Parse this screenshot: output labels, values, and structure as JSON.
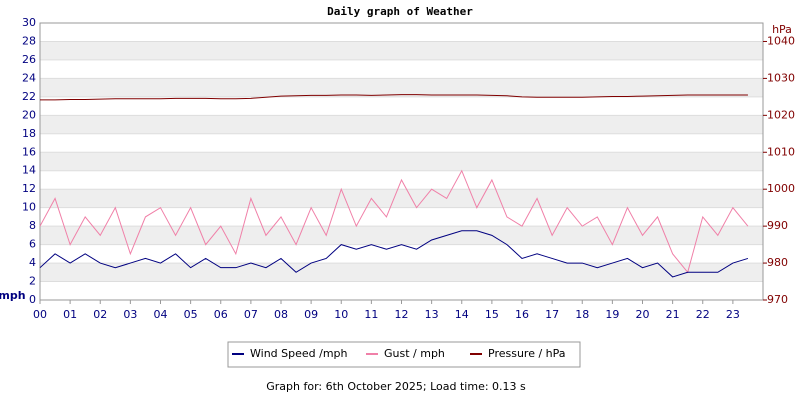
{
  "chart_data": {
    "type": "line",
    "title": "Daily graph of Weather",
    "ylabel": "mph",
    "y2label": "hPa",
    "footer": "Graph for: 6th October 2025; Load time: 0.13 s",
    "grid": true,
    "x": [
      0,
      0.5,
      1,
      1.5,
      2,
      2.5,
      3,
      3.5,
      4,
      4.5,
      5,
      5.5,
      6,
      6.5,
      7,
      7.5,
      8,
      8.5,
      9,
      9.5,
      10,
      10.5,
      11,
      11.5,
      12,
      12.5,
      13,
      13.5,
      14,
      14.5,
      15,
      15.5,
      16,
      16.5,
      17,
      17.5,
      18,
      18.5,
      19,
      19.5,
      20,
      20.5,
      21,
      21.5,
      22,
      22.5,
      23,
      23.5
    ],
    "xlim": [
      0,
      24
    ],
    "xticks": [
      {
        "value": 0,
        "label": "00"
      },
      {
        "value": 1,
        "label": "01"
      },
      {
        "value": 2,
        "label": "02"
      },
      {
        "value": 3,
        "label": "03"
      },
      {
        "value": 4,
        "label": "04"
      },
      {
        "value": 5,
        "label": "05"
      },
      {
        "value": 6,
        "label": "06"
      },
      {
        "value": 7,
        "label": "07"
      },
      {
        "value": 8,
        "label": "08"
      },
      {
        "value": 9,
        "label": "09"
      },
      10,
      11,
      12,
      13,
      14,
      15,
      16,
      17,
      18,
      19,
      20,
      21,
      22,
      23
    ],
    "ylim": [
      0,
      30
    ],
    "yticks": [
      0,
      2,
      4,
      6,
      8,
      10,
      12,
      14,
      16,
      18,
      20,
      22,
      24,
      26,
      28,
      30
    ],
    "y2lim": [
      970,
      1045
    ],
    "y2ticks": [
      970,
      980,
      990,
      1000,
      1010,
      1020,
      1030,
      1040
    ],
    "series": [
      {
        "name": "Wind Speed /mph",
        "color": "#000080",
        "values": [
          3.5,
          5,
          4,
          5,
          4,
          3.5,
          4,
          4.5,
          4,
          5,
          3.5,
          4.5,
          3.5,
          3.5,
          4,
          3.5,
          4.5,
          3,
          4,
          4.5,
          6,
          5.5,
          6,
          5.5,
          6,
          5.5,
          6.5,
          7,
          7.5,
          7.5,
          7,
          6,
          4.5,
          5,
          4.5,
          4,
          4,
          3.5,
          4,
          4.5,
          3.5,
          4,
          2.5,
          3,
          3,
          3,
          4,
          4.5
        ]
      },
      {
        "name": "Gust / mph",
        "color": "#f080a8",
        "values": [
          8,
          11,
          6,
          9,
          7,
          10,
          5,
          9,
          10,
          7,
          10,
          6,
          8,
          5,
          11,
          7,
          9,
          6,
          10,
          7,
          12,
          8,
          11,
          9,
          13,
          10,
          12,
          11,
          14,
          10,
          13,
          9,
          8,
          11,
          7,
          10,
          8,
          9,
          6,
          10,
          7,
          9,
          5,
          3,
          9,
          7,
          10,
          8
        ]
      },
      {
        "name": "Pressure / hPa",
        "color": "#800000",
        "axis": "y2",
        "values": [
          1024.2,
          1024.2,
          1024.3,
          1024.3,
          1024.4,
          1024.5,
          1024.5,
          1024.5,
          1024.5,
          1024.6,
          1024.6,
          1024.6,
          1024.5,
          1024.5,
          1024.6,
          1024.9,
          1025.2,
          1025.3,
          1025.4,
          1025.4,
          1025.5,
          1025.5,
          1025.4,
          1025.5,
          1025.6,
          1025.6,
          1025.5,
          1025.5,
          1025.5,
          1025.5,
          1025.4,
          1025.3,
          1025.0,
          1024.9,
          1024.9,
          1024.9,
          1024.9,
          1025.0,
          1025.1,
          1025.1,
          1025.2,
          1025.3,
          1025.4,
          1025.5,
          1025.5,
          1025.5,
          1025.5,
          1025.5
        ]
      }
    ]
  }
}
